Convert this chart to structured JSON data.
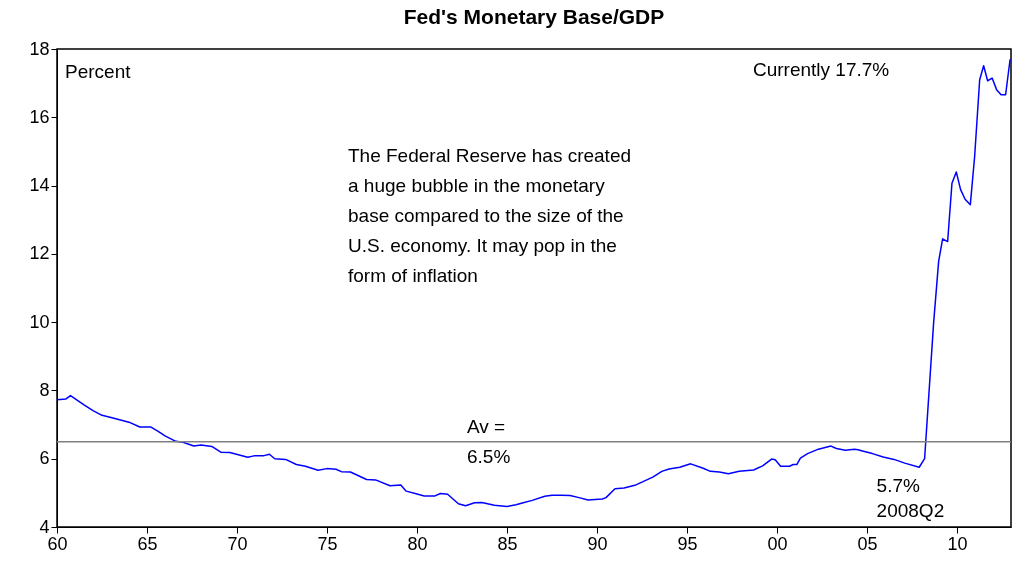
{
  "chart_data": {
    "type": "line",
    "title": "Fed's Monetary Base/GDP",
    "ylabel": "Percent",
    "x": [
      1960,
      1960.5,
      1960.75,
      1961.5,
      1962,
      1962.5,
      1963,
      1964,
      1964.6,
      1965.2,
      1965.6,
      1966,
      1966.6,
      1967,
      1967.6,
      1968,
      1968.6,
      1969.1,
      1969.6,
      1970.6,
      1971,
      1971.5,
      1971.8,
      1972.1,
      1972.7,
      1973.3,
      1973.8,
      1974.5,
      1975,
      1975.5,
      1975.8,
      1976.3,
      1977.2,
      1977.7,
      1978.5,
      1979.1,
      1979.4,
      1979.9,
      1980.4,
      1981,
      1981.3,
      1981.7,
      1982.3,
      1982.7,
      1983.2,
      1983.6,
      1984.3,
      1985,
      1985.5,
      1985.9,
      1986.4,
      1987.1,
      1987.5,
      1988,
      1988.5,
      1989,
      1989.5,
      1990.3,
      1990.5,
      1991,
      1991.5,
      1992.1,
      1993.1,
      1993.6,
      1994,
      1994.6,
      1995.2,
      1995.9,
      1996.3,
      1996.8,
      1997.3,
      1997.9,
      1998.7,
      1999.2,
      1999.7,
      1999.9,
      2000.2,
      2000.7,
      2000.9,
      2001.1,
      2001.3,
      2001.7,
      2002.3,
      2003,
      2003.3,
      2003.8,
      2004.3,
      2004.5,
      2004.8,
      2005.3,
      2005.9,
      2006.5,
      2007.1,
      2007.9,
      2008.2,
      2008.7,
      2008.98,
      2009.2,
      2009.48,
      2009.72,
      2009.96,
      2010.2,
      2010.45,
      2010.74,
      2010.98,
      2011.26,
      2011.48,
      2011.7,
      2011.95,
      2012.2,
      2012.45,
      2012.7,
      2012.95
    ],
    "series": [
      {
        "color": "#0000ff",
        "values": [
          7.73,
          7.75,
          7.85,
          7.58,
          7.41,
          7.27,
          7.21,
          7.07,
          6.93,
          6.93,
          6.81,
          6.67,
          6.51,
          6.48,
          6.37,
          6.4,
          6.36,
          6.19,
          6.18,
          6.04,
          6.09,
          6.09,
          6.13,
          6.0,
          5.98,
          5.83,
          5.78,
          5.66,
          5.71,
          5.69,
          5.62,
          5.61,
          5.39,
          5.38,
          5.21,
          5.23,
          5.05,
          4.98,
          4.91,
          4.91,
          4.98,
          4.96,
          4.68,
          4.62,
          4.71,
          4.72,
          4.64,
          4.6,
          4.65,
          4.71,
          4.78,
          4.9,
          4.93,
          4.93,
          4.92,
          4.86,
          4.79,
          4.82,
          4.86,
          5.12,
          5.14,
          5.22,
          5.46,
          5.63,
          5.7,
          5.75,
          5.85,
          5.72,
          5.63,
          5.61,
          5.56,
          5.63,
          5.67,
          5.79,
          5.99,
          5.97,
          5.78,
          5.78,
          5.83,
          5.83,
          6.02,
          6.15,
          6.28,
          6.37,
          6.3,
          6.25,
          6.28,
          6.26,
          6.22,
          6.15,
          6.05,
          5.98,
          5.87,
          5.75,
          6.0,
          9.97,
          11.78,
          12.44,
          12.36,
          14.07,
          14.4,
          13.88,
          13.6,
          13.44,
          14.85,
          17.1,
          17.51,
          17.07,
          17.15,
          16.81,
          16.66,
          16.66,
          17.7
        ]
      }
    ],
    "xlim": [
      1960,
      2013
    ],
    "xticks": [
      {
        "value": 1960,
        "label": "60"
      },
      {
        "value": 1965,
        "label": "65"
      },
      {
        "value": 1970,
        "label": "70"
      },
      {
        "value": 1975,
        "label": "75"
      },
      {
        "value": 1980,
        "label": "80"
      },
      {
        "value": 1985,
        "label": "85"
      },
      {
        "value": 1990,
        "label": "90"
      },
      {
        "value": 1995,
        "label": "95"
      },
      {
        "value": 2000,
        "label": "00"
      },
      {
        "value": 2005,
        "label": "05"
      },
      {
        "value": 2010,
        "label": "10"
      }
    ],
    "ylim": [
      4,
      18
    ],
    "yticks": [
      4,
      6,
      8,
      10,
      12,
      14,
      16,
      18
    ],
    "grid": false,
    "line_style": "solid",
    "ref_lines": [
      {
        "axis": "y",
        "value": 6.5,
        "label": "Av = 6.5%",
        "color": "#808080"
      }
    ],
    "annotations": [
      "The Federal Reserve has created a huge bubble in the monetary base compared to the size of the U.S. economy. It may pop in the form of inflation",
      "Currently 17.7%",
      {
        "text": "5.7% 2008Q2",
        "x": 2008.2,
        "y": 5.75
      }
    ]
  }
}
